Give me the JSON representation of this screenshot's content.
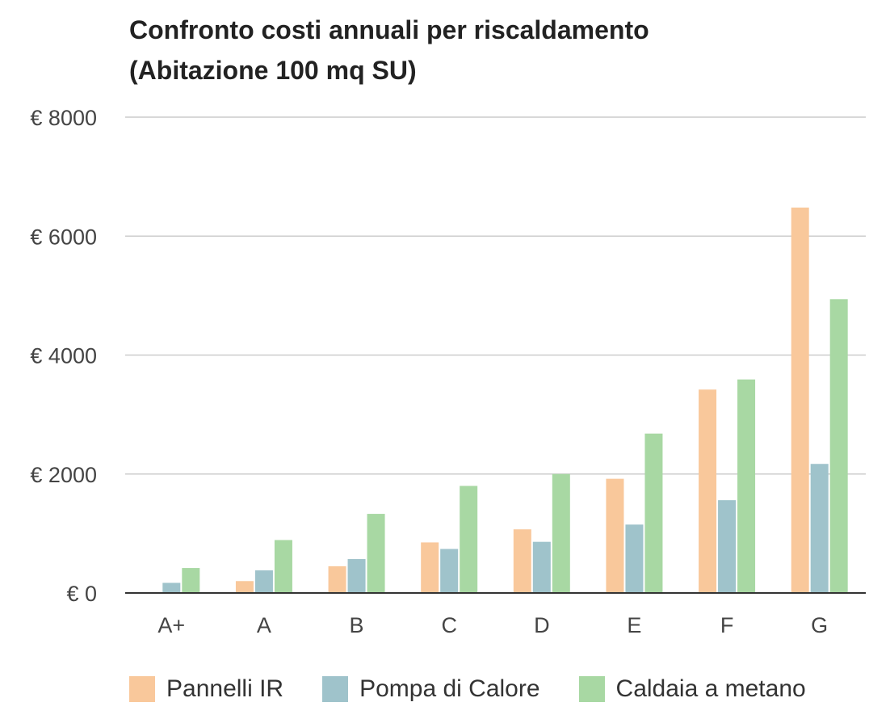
{
  "chart_data": {
    "type": "bar",
    "title_line1": "Confronto costi annuali per riscaldamento",
    "title_line2": "(Abitazione 100 mq SU)",
    "xlabel": "",
    "ylabel": "",
    "ylim": [
      0,
      8000
    ],
    "y_ticks": [
      0,
      2000,
      4000,
      6000,
      8000
    ],
    "y_tick_labels": [
      "€ 0",
      "€ 2000",
      "€ 4000",
      "€ 6000",
      "€ 8000"
    ],
    "grid": true,
    "legend_position": "bottom",
    "categories": [
      "A+",
      "A",
      "B",
      "C",
      "D",
      "E",
      "F",
      "G"
    ],
    "series": [
      {
        "name": "Pannelli IR",
        "color": "#f9c89b",
        "values": [
          0,
          200,
          450,
          850,
          1070,
          1920,
          3420,
          6480
        ]
      },
      {
        "name": "Pompa di Calore",
        "color": "#9fc3cb",
        "values": [
          170,
          380,
          570,
          740,
          860,
          1150,
          1560,
          2170
        ]
      },
      {
        "name": "Caldaia a metano",
        "color": "#a8d8a3",
        "values": [
          420,
          890,
          1330,
          1800,
          2000,
          2680,
          3590,
          4940
        ]
      }
    ]
  }
}
